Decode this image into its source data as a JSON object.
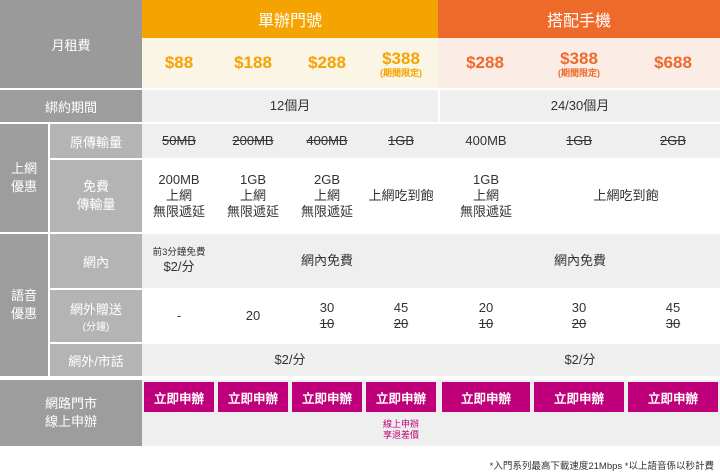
{
  "header": {
    "plan_label": "月租費",
    "group_a": "單辦門號",
    "group_b": "搭配手機"
  },
  "colors": {
    "orange_a": "#f5a300",
    "orange_b": "#ee6a2a",
    "magenta": "#c0007a",
    "grey": "#9d9d9d"
  },
  "prices": [
    {
      "value": "$88",
      "note": ""
    },
    {
      "value": "$188",
      "note": ""
    },
    {
      "value": "$288",
      "note": ""
    },
    {
      "value": "$388",
      "note": "(期間限定)"
    },
    {
      "value": "$288",
      "note": ""
    },
    {
      "value": "$388",
      "note": "(期間限定)"
    },
    {
      "value": "$688",
      "note": ""
    }
  ],
  "contract": {
    "label": "綁約期間",
    "group_a": "12個月",
    "group_b": "24/30個月"
  },
  "internet": {
    "label": "上網\n優惠",
    "original": {
      "label": "原傳輸量",
      "values": [
        "50MB",
        "200MB",
        "400MB",
        "1GB",
        "400MB",
        "1GB",
        "2GB"
      ],
      "struck": [
        true,
        true,
        true,
        true,
        false,
        true,
        true
      ]
    },
    "free": {
      "label": "免費\n傳輸量",
      "values": [
        "200MB\n上網\n無限遞延",
        "1GB\n上網\n無限遞延",
        "2GB\n上網\n無限遞延",
        "上網吃到飽",
        "1GB\n上網\n無限遞延",
        "上網吃到飽"
      ]
    }
  },
  "voice": {
    "label": "語音\n優惠",
    "onnet": {
      "label": "網內",
      "first_cell_top": "前3分鐘免費",
      "first_cell_bottom": "$2/分",
      "group_a_rest": "網內免費",
      "group_b": "網內免費"
    },
    "offnet_gift": {
      "label": "網外贈送",
      "sublabel": "(分鐘)",
      "values": [
        {
          "main": "-",
          "old": ""
        },
        {
          "main": "20",
          "old": ""
        },
        {
          "main": "30",
          "old": "10"
        },
        {
          "main": "45",
          "old": "20"
        },
        {
          "main": "20",
          "old": "10"
        },
        {
          "main": "30",
          "old": "20"
        },
        {
          "main": "45",
          "old": "30"
        }
      ]
    },
    "offnet_landline": {
      "label": "網外/市話",
      "group_a": "$2/分",
      "group_b": "$2/分"
    }
  },
  "apply": {
    "label": "網路門市\n線上申辦",
    "button_label": "立即申辦",
    "note": "線上申辦\n享退差價"
  },
  "footnote": "*入門系列最高下載速度21Mbps *以上語音係以秒計費"
}
